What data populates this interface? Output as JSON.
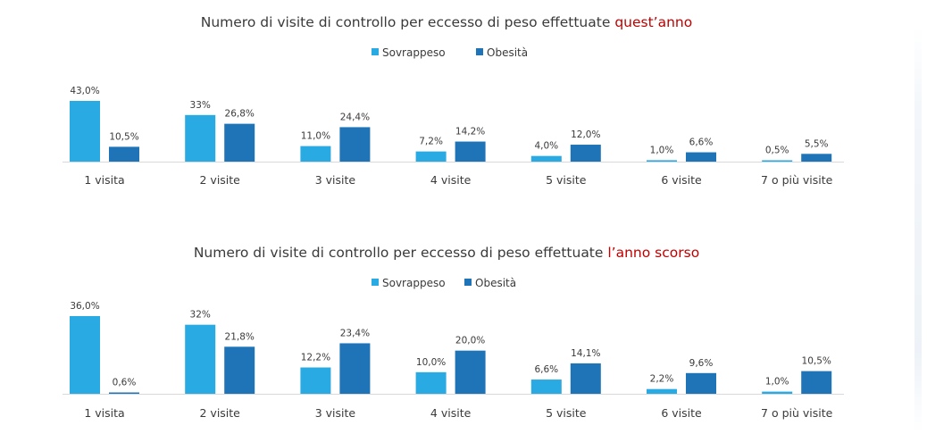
{
  "colors": {
    "sovrappeso": "#2aaae2",
    "obesita": "#1f74b8",
    "highlight": "#c00000"
  },
  "chart_data": [
    {
      "type": "bar",
      "title": "Numero di visite di controllo per eccesso di peso effettuate",
      "title_highlight": "quest’anno",
      "categories": [
        "1 visita",
        "2 visite",
        "3 visite",
        "4 visite",
        "5 visite",
        "6 visite",
        "7 o più visite"
      ],
      "series": [
        {
          "name": "Sovrappeso",
          "values": [
            43.0,
            33,
            11.0,
            7.2,
            4.0,
            1.0,
            0.5
          ],
          "labels": [
            "43,0%",
            "33%",
            "11,0%",
            "7,2%",
            "4,0%",
            "1,0%",
            "0,5%"
          ]
        },
        {
          "name": "Obesità",
          "values": [
            10.5,
            26.8,
            24.4,
            14.2,
            12.0,
            6.6,
            5.5
          ],
          "labels": [
            "10,5%",
            "26,8%",
            "24,4%",
            "14,2%",
            "12,0%",
            "6,6%",
            "5,5%"
          ]
        }
      ],
      "ylim": [
        0,
        43
      ],
      "legend": "top-center",
      "grid": false
    },
    {
      "type": "bar",
      "title": "Numero di visite di controllo per eccesso di peso effettuate",
      "title_highlight": "l’anno scorso",
      "categories": [
        "1 visita",
        "2 visite",
        "3 visite",
        "4 visite",
        "5 visite",
        "6 visite",
        "7 o più visite"
      ],
      "series": [
        {
          "name": "Sovrappeso",
          "values": [
            36.0,
            32,
            12.2,
            10.0,
            6.6,
            2.2,
            1.0
          ],
          "labels": [
            "36,0%",
            "32%",
            "12,2%",
            "10,0%",
            "6,6%",
            "2,2%",
            "1,0%"
          ]
        },
        {
          "name": "Obesità",
          "values": [
            0.6,
            21.8,
            23.4,
            20.0,
            14.1,
            9.6,
            10.5
          ],
          "labels": [
            "0,6%",
            "21,8%",
            "23,4%",
            "20,0%",
            "14,1%",
            "9,6%",
            "10,5%"
          ]
        }
      ],
      "ylim": [
        0,
        36
      ],
      "legend": "top-center",
      "grid": false
    }
  ]
}
